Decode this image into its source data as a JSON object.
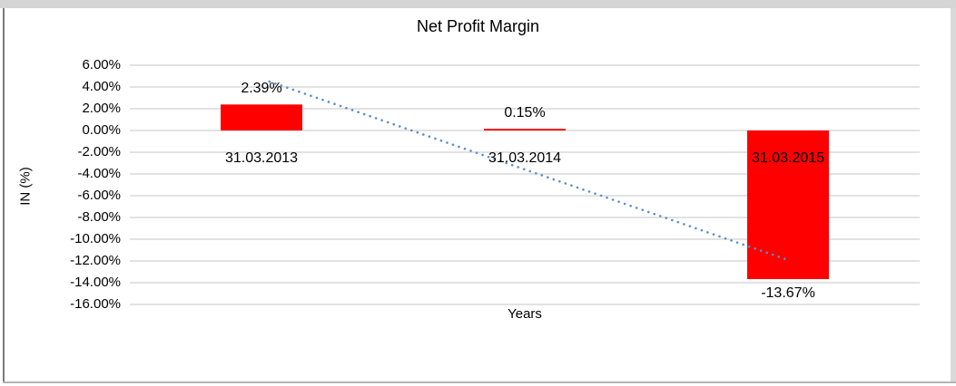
{
  "chart_data": {
    "type": "bar",
    "title": "Net Profit Margin",
    "xlabel": "Years",
    "ylabel": "IN (%)",
    "categories": [
      "31.03.2013",
      "31.03.2014",
      "31.03.2015"
    ],
    "values": [
      2.39,
      0.15,
      -13.67
    ],
    "data_labels": [
      "2.39%",
      "0.15%",
      "-13.67%"
    ],
    "y_tick_labels": [
      "6.00%",
      "4.00%",
      "2.00%",
      "0.00%",
      "-2.00%",
      "-4.00%",
      "-6.00%",
      "-8.00%",
      "-10.00%",
      "-12.00%",
      "-14.00%",
      "-16.00%"
    ],
    "y_tick_values": [
      6,
      4,
      2,
      0,
      -2,
      -4,
      -6,
      -8,
      -10,
      -12,
      -14,
      -16
    ],
    "ylim": [
      -16,
      6
    ],
    "grid": true,
    "legend": "none",
    "bar_color": "#ff0000",
    "gridline_color": "#d9d9d9",
    "text_color": "#000000",
    "trendline": {
      "style": "dotted",
      "color": "#5b8fc9",
      "x1_cat": 0.53,
      "y1_val": 4.5,
      "x2_cat": 2.49,
      "y2_val": -11.83
    }
  }
}
